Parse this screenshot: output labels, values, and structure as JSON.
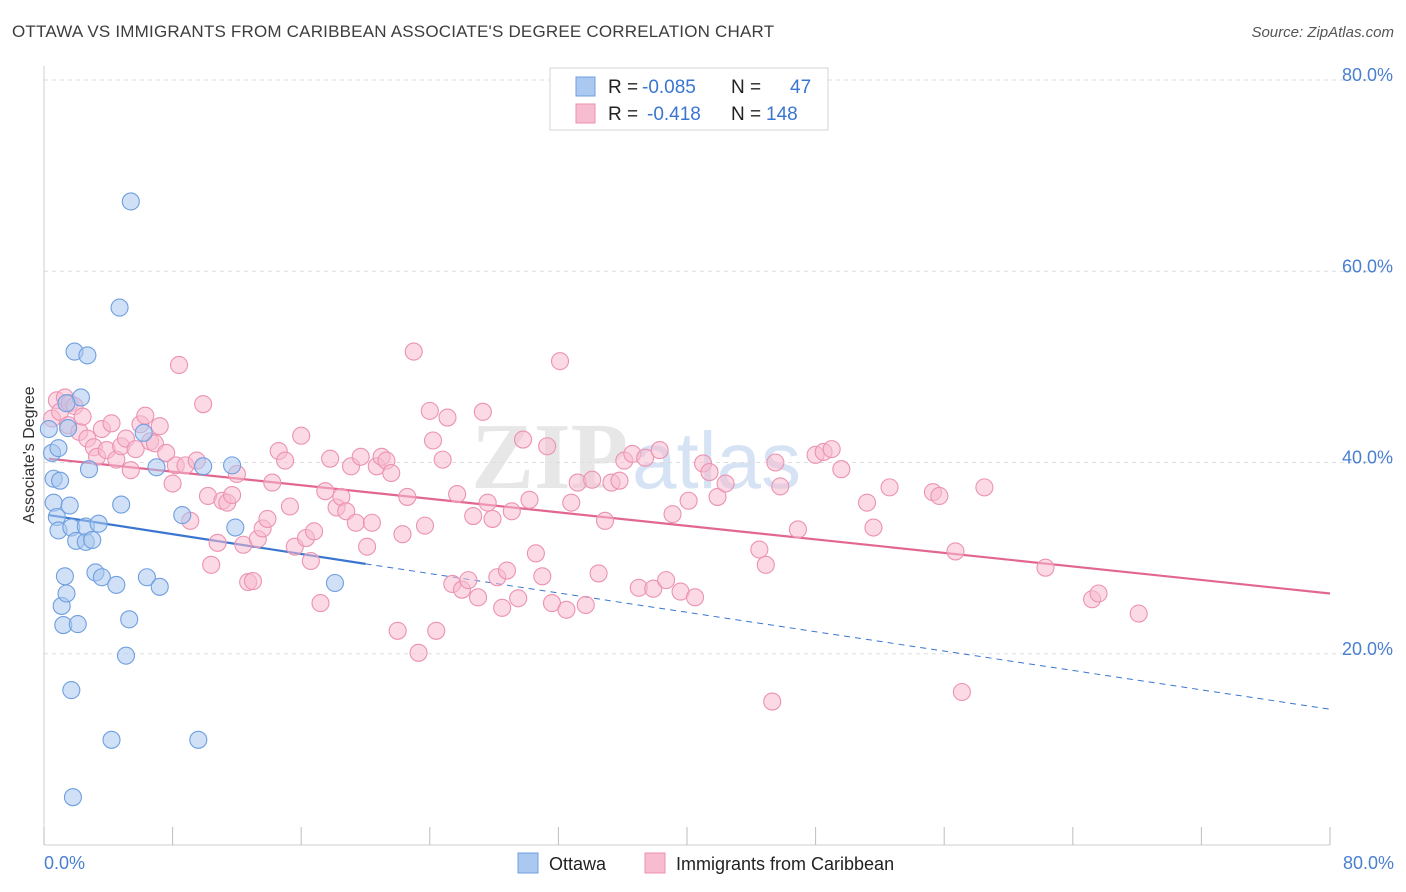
{
  "header": {
    "title": "OTTAWA VS IMMIGRANTS FROM CARIBBEAN ASSOCIATE'S DEGREE CORRELATION CHART",
    "source": "Source: ZipAtlas.com"
  },
  "watermark": {
    "zip": "ZIP",
    "atlas": "atlas"
  },
  "colors": {
    "ottawa_fill": "#aac8f0",
    "ottawa_stroke": "#6f9fe0",
    "ottawa_line": "#3a76cf",
    "carib_fill": "#f7bcd0",
    "carib_stroke": "#ec92b2",
    "carib_line": "#e2678f",
    "tick_label": "#4a7fd0",
    "grid": "#dddddd"
  },
  "legend": {
    "entries": [
      {
        "r_label": "R = ",
        "r_value": "-0.085",
        "n_label": "N = ",
        "n_value": "47"
      },
      {
        "r_label": "R = ",
        "r_value": "-0.418",
        "n_label": "N = ",
        "n_value": "148"
      }
    ]
  },
  "bottom_legend": [
    "Ottawa",
    "Immigrants from Caribbean"
  ],
  "chart_data": {
    "type": "scatter",
    "title": "OTTAWA VS IMMIGRANTS FROM CARIBBEAN ASSOCIATE'S DEGREE CORRELATION CHART",
    "xlabel": "",
    "ylabel": "Associate's Degree",
    "xlim": [
      0,
      80
    ],
    "ylim": [
      0,
      80
    ],
    "x_tick_labels": [
      "0.0%",
      "80.0%"
    ],
    "y_ticks": [
      20,
      40,
      60,
      80
    ],
    "y_tick_labels": [
      "20.0%",
      "40.0%",
      "60.0%",
      "80.0%"
    ],
    "series": [
      {
        "name": "Ottawa",
        "r": -0.085,
        "n": 47,
        "trend": {
          "x0": 0.3,
          "y0": 34.5,
          "x1": 20,
          "y1": 29.4,
          "dash_x1": 80,
          "dash_y1": 14.2
        },
        "points": [
          [
            0.3,
            43.5
          ],
          [
            0.5,
            41.0
          ],
          [
            0.6,
            38.3
          ],
          [
            0.6,
            35.8
          ],
          [
            0.8,
            34.3
          ],
          [
            0.9,
            32.9
          ],
          [
            0.9,
            41.5
          ],
          [
            1.0,
            38.1
          ],
          [
            1.1,
            25.0
          ],
          [
            1.2,
            23.0
          ],
          [
            1.3,
            28.1
          ],
          [
            1.4,
            26.3
          ],
          [
            1.5,
            43.6
          ],
          [
            1.6,
            35.5
          ],
          [
            1.7,
            33.2
          ],
          [
            1.7,
            16.2
          ],
          [
            1.8,
            5.0
          ],
          [
            1.9,
            51.6
          ],
          [
            2.0,
            31.8
          ],
          [
            2.1,
            23.1
          ],
          [
            2.3,
            46.8
          ],
          [
            2.6,
            31.7
          ],
          [
            2.6,
            33.3
          ],
          [
            2.7,
            51.2
          ],
          [
            2.8,
            39.3
          ],
          [
            3.0,
            31.9
          ],
          [
            3.2,
            28.5
          ],
          [
            3.4,
            33.6
          ],
          [
            3.6,
            28.0
          ],
          [
            4.2,
            11.0
          ],
          [
            4.5,
            27.2
          ],
          [
            4.8,
            35.6
          ],
          [
            5.1,
            19.8
          ],
          [
            5.3,
            23.6
          ],
          [
            5.4,
            67.3
          ],
          [
            4.7,
            56.2
          ],
          [
            6.2,
            43.1
          ],
          [
            6.4,
            28.0
          ],
          [
            7.0,
            39.5
          ],
          [
            7.2,
            27.0
          ],
          [
            8.6,
            34.5
          ],
          [
            9.6,
            11.0
          ],
          [
            9.9,
            39.6
          ],
          [
            11.7,
            39.7
          ],
          [
            11.9,
            33.2
          ],
          [
            18.1,
            27.4
          ],
          [
            1.4,
            46.2
          ]
        ]
      },
      {
        "name": "Immigrants from Caribbean",
        "r": -0.418,
        "n": 148,
        "trend": {
          "x0": 0.3,
          "y0": 40.4,
          "x1": 80,
          "y1": 26.3
        },
        "points": [
          [
            0.5,
            44.6
          ],
          [
            0.8,
            46.5
          ],
          [
            1.0,
            45.3
          ],
          [
            1.3,
            46.8
          ],
          [
            1.5,
            43.9
          ],
          [
            1.6,
            46.2
          ],
          [
            1.9,
            45.9
          ],
          [
            2.2,
            43.2
          ],
          [
            2.4,
            44.8
          ],
          [
            2.7,
            42.5
          ],
          [
            3.1,
            41.6
          ],
          [
            3.3,
            40.6
          ],
          [
            3.6,
            43.5
          ],
          [
            3.9,
            41.3
          ],
          [
            4.2,
            44.1
          ],
          [
            4.5,
            40.3
          ],
          [
            4.8,
            41.7
          ],
          [
            5.1,
            42.5
          ],
          [
            5.4,
            39.2
          ],
          [
            5.7,
            41.4
          ],
          [
            6.0,
            44.0
          ],
          [
            6.3,
            44.9
          ],
          [
            6.6,
            42.2
          ],
          [
            6.9,
            42.0
          ],
          [
            7.2,
            43.8
          ],
          [
            7.6,
            41.0
          ],
          [
            8.0,
            37.8
          ],
          [
            8.2,
            39.7
          ],
          [
            8.4,
            50.2
          ],
          [
            8.8,
            39.7
          ],
          [
            9.1,
            33.9
          ],
          [
            9.5,
            40.2
          ],
          [
            9.9,
            46.1
          ],
          [
            10.2,
            36.5
          ],
          [
            10.4,
            29.3
          ],
          [
            10.8,
            31.6
          ],
          [
            11.1,
            36.0
          ],
          [
            11.4,
            35.8
          ],
          [
            11.7,
            36.6
          ],
          [
            12.0,
            38.8
          ],
          [
            12.4,
            31.4
          ],
          [
            12.7,
            27.5
          ],
          [
            13.0,
            27.6
          ],
          [
            13.3,
            32.0
          ],
          [
            13.6,
            33.1
          ],
          [
            13.9,
            34.1
          ],
          [
            14.2,
            37.9
          ],
          [
            14.6,
            41.2
          ],
          [
            15.0,
            40.2
          ],
          [
            15.3,
            35.4
          ],
          [
            15.6,
            31.2
          ],
          [
            16.0,
            42.8
          ],
          [
            16.3,
            32.1
          ],
          [
            16.6,
            29.7
          ],
          [
            16.8,
            32.8
          ],
          [
            17.2,
            25.3
          ],
          [
            17.5,
            37.0
          ],
          [
            17.8,
            40.4
          ],
          [
            18.2,
            35.3
          ],
          [
            18.5,
            36.4
          ],
          [
            18.8,
            34.9
          ],
          [
            19.1,
            39.6
          ],
          [
            19.4,
            33.7
          ],
          [
            19.7,
            40.6
          ],
          [
            20.1,
            31.2
          ],
          [
            20.4,
            33.7
          ],
          [
            20.7,
            39.6
          ],
          [
            21.0,
            40.6
          ],
          [
            21.3,
            40.2
          ],
          [
            21.6,
            38.9
          ],
          [
            22.0,
            22.4
          ],
          [
            22.3,
            32.5
          ],
          [
            22.6,
            36.4
          ],
          [
            23.0,
            51.6
          ],
          [
            23.3,
            20.1
          ],
          [
            23.7,
            33.4
          ],
          [
            24.0,
            45.4
          ],
          [
            24.2,
            42.3
          ],
          [
            24.4,
            22.4
          ],
          [
            24.8,
            40.3
          ],
          [
            25.1,
            44.7
          ],
          [
            25.4,
            27.3
          ],
          [
            25.7,
            36.7
          ],
          [
            26.0,
            26.7
          ],
          [
            26.4,
            27.7
          ],
          [
            26.7,
            34.4
          ],
          [
            27.0,
            25.9
          ],
          [
            27.3,
            45.3
          ],
          [
            27.6,
            35.8
          ],
          [
            27.9,
            34.1
          ],
          [
            28.2,
            28.0
          ],
          [
            28.5,
            24.8
          ],
          [
            28.8,
            28.7
          ],
          [
            29.1,
            34.9
          ],
          [
            29.5,
            25.8
          ],
          [
            29.8,
            42.4
          ],
          [
            30.2,
            36.1
          ],
          [
            30.6,
            30.5
          ],
          [
            31.0,
            28.1
          ],
          [
            31.3,
            41.7
          ],
          [
            31.6,
            25.3
          ],
          [
            32.1,
            50.6
          ],
          [
            32.5,
            24.6
          ],
          [
            32.8,
            35.8
          ],
          [
            33.2,
            37.9
          ],
          [
            33.7,
            25.1
          ],
          [
            34.1,
            38.2
          ],
          [
            34.5,
            28.4
          ],
          [
            34.9,
            33.9
          ],
          [
            35.3,
            37.9
          ],
          [
            35.8,
            38.1
          ],
          [
            36.1,
            40.2
          ],
          [
            36.6,
            40.9
          ],
          [
            37.0,
            26.9
          ],
          [
            37.4,
            40.5
          ],
          [
            37.9,
            26.8
          ],
          [
            38.3,
            41.3
          ],
          [
            38.7,
            27.7
          ],
          [
            39.1,
            34.6
          ],
          [
            39.6,
            26.5
          ],
          [
            40.1,
            36.0
          ],
          [
            40.5,
            25.9
          ],
          [
            41.0,
            39.9
          ],
          [
            41.4,
            39.0
          ],
          [
            41.9,
            36.4
          ],
          [
            42.4,
            37.8
          ],
          [
            44.5,
            30.9
          ],
          [
            44.9,
            29.3
          ],
          [
            45.5,
            40.0
          ],
          [
            45.8,
            37.5
          ],
          [
            46.9,
            33.0
          ],
          [
            48.0,
            40.8
          ],
          [
            48.5,
            41.1
          ],
          [
            49.0,
            41.4
          ],
          [
            49.6,
            39.3
          ],
          [
            51.2,
            35.8
          ],
          [
            51.6,
            33.2
          ],
          [
            52.6,
            37.4
          ],
          [
            55.3,
            36.9
          ],
          [
            55.7,
            36.5
          ],
          [
            57.1,
            16.0
          ],
          [
            56.7,
            30.7
          ],
          [
            58.5,
            37.4
          ],
          [
            62.3,
            29.0
          ],
          [
            65.2,
            25.7
          ],
          [
            65.6,
            26.3
          ],
          [
            68.1,
            24.2
          ],
          [
            45.3,
            15.0
          ]
        ]
      }
    ]
  }
}
